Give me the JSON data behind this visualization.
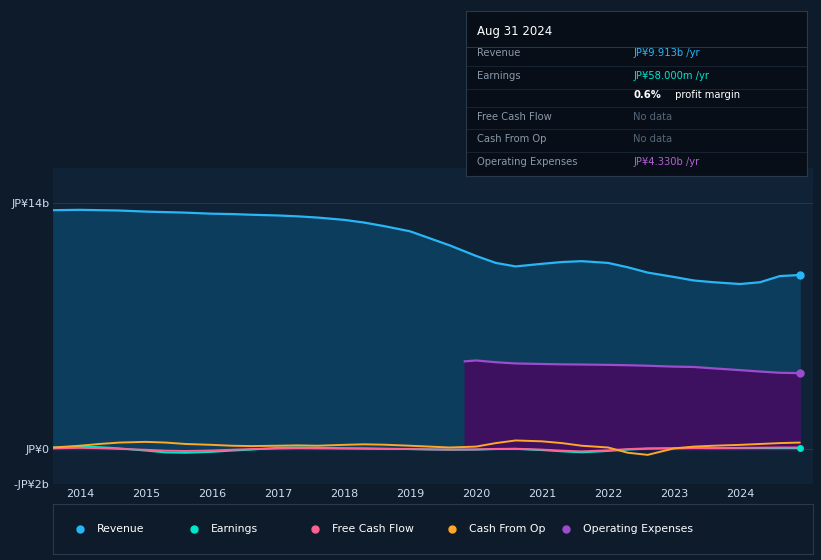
{
  "bg_color": "#0d1b2a",
  "plot_bg_color": "#102236",
  "title_text": "Aug 31 2024",
  "ylim": [
    -2000000000,
    16000000000
  ],
  "xlim_start": 2013.6,
  "xlim_end": 2025.1,
  "xticks": [
    2014,
    2015,
    2016,
    2017,
    2018,
    2019,
    2020,
    2021,
    2022,
    2023,
    2024
  ],
  "ytick_vals": [
    -2000000000,
    0,
    14000000000
  ],
  "ytick_labels": [
    "-JP¥2b",
    "JP¥0",
    "JP¥14b"
  ],
  "revenue": {
    "color": "#29b6f6",
    "fill_color": "#0d3d5c",
    "label": "Revenue",
    "x": [
      2013.6,
      2014.0,
      2014.3,
      2014.6,
      2015.0,
      2015.3,
      2015.6,
      2016.0,
      2016.3,
      2016.6,
      2017.0,
      2017.3,
      2017.6,
      2018.0,
      2018.3,
      2018.6,
      2019.0,
      2019.3,
      2019.6,
      2020.0,
      2020.3,
      2020.6,
      2021.0,
      2021.3,
      2021.6,
      2022.0,
      2022.3,
      2022.6,
      2023.0,
      2023.3,
      2023.6,
      2024.0,
      2024.3,
      2024.6,
      2024.9
    ],
    "y": [
      13600000000,
      13620000000,
      13600000000,
      13580000000,
      13520000000,
      13490000000,
      13460000000,
      13400000000,
      13380000000,
      13340000000,
      13300000000,
      13250000000,
      13180000000,
      13050000000,
      12900000000,
      12700000000,
      12400000000,
      12000000000,
      11600000000,
      11000000000,
      10600000000,
      10400000000,
      10550000000,
      10650000000,
      10700000000,
      10600000000,
      10350000000,
      10050000000,
      9800000000,
      9600000000,
      9500000000,
      9400000000,
      9500000000,
      9850000000,
      9913000000
    ]
  },
  "earnings": {
    "color": "#00e5cc",
    "label": "Earnings",
    "x": [
      2013.6,
      2014.0,
      2014.3,
      2014.6,
      2015.0,
      2015.3,
      2015.6,
      2016.0,
      2016.3,
      2016.6,
      2017.0,
      2017.3,
      2017.6,
      2018.0,
      2018.3,
      2018.6,
      2019.0,
      2019.3,
      2019.6,
      2020.0,
      2020.3,
      2020.6,
      2021.0,
      2021.3,
      2021.6,
      2022.0,
      2022.3,
      2022.6,
      2023.0,
      2023.3,
      2023.6,
      2024.0,
      2024.3,
      2024.6,
      2024.9
    ],
    "y": [
      100000000,
      150000000,
      120000000,
      50000000,
      -80000000,
      -180000000,
      -200000000,
      -150000000,
      -80000000,
      -20000000,
      80000000,
      100000000,
      80000000,
      60000000,
      50000000,
      30000000,
      10000000,
      -10000000,
      -30000000,
      -20000000,
      10000000,
      20000000,
      -50000000,
      -120000000,
      -180000000,
      -100000000,
      -20000000,
      30000000,
      50000000,
      60000000,
      55000000,
      58000000,
      60000000,
      58000000,
      58000000
    ]
  },
  "free_cash_flow": {
    "color": "#ff6090",
    "label": "Free Cash Flow",
    "x": [
      2013.6,
      2014.0,
      2014.3,
      2014.6,
      2015.0,
      2015.3,
      2015.6,
      2016.0,
      2016.3,
      2016.6,
      2017.0,
      2017.3,
      2017.6,
      2018.0,
      2018.3,
      2018.6,
      2019.0,
      2019.3,
      2019.6,
      2020.0,
      2020.3,
      2020.6,
      2021.0,
      2021.3,
      2021.6,
      2022.0,
      2022.3,
      2022.6,
      2023.0,
      2023.3,
      2023.6,
      2024.0,
      2024.3,
      2024.6,
      2024.9
    ],
    "y": [
      50000000,
      80000000,
      60000000,
      20000000,
      -30000000,
      -80000000,
      -100000000,
      -70000000,
      -30000000,
      10000000,
      40000000,
      60000000,
      50000000,
      40000000,
      30000000,
      20000000,
      10000000,
      -10000000,
      -20000000,
      -10000000,
      20000000,
      30000000,
      -20000000,
      -80000000,
      -120000000,
      -60000000,
      10000000,
      50000000,
      60000000,
      70000000,
      65000000,
      80000000,
      90000000,
      100000000,
      100000000
    ]
  },
  "cash_from_op": {
    "color": "#ffa726",
    "label": "Cash From Op",
    "x": [
      2013.6,
      2014.0,
      2014.3,
      2014.6,
      2015.0,
      2015.3,
      2015.6,
      2016.0,
      2016.3,
      2016.6,
      2017.0,
      2017.3,
      2017.6,
      2018.0,
      2018.3,
      2018.6,
      2019.0,
      2019.3,
      2019.6,
      2020.0,
      2020.3,
      2020.6,
      2021.0,
      2021.3,
      2021.6,
      2022.0,
      2022.3,
      2022.6,
      2023.0,
      2023.3,
      2023.6,
      2024.0,
      2024.3,
      2024.6,
      2024.9
    ],
    "y": [
      100000000,
      200000000,
      300000000,
      380000000,
      420000000,
      380000000,
      300000000,
      250000000,
      200000000,
      180000000,
      200000000,
      220000000,
      200000000,
      250000000,
      280000000,
      260000000,
      200000000,
      150000000,
      100000000,
      150000000,
      350000000,
      500000000,
      450000000,
      350000000,
      200000000,
      100000000,
      -200000000,
      -320000000,
      50000000,
      150000000,
      200000000,
      250000000,
      300000000,
      350000000,
      380000000
    ]
  },
  "op_expenses": {
    "color": "#9c4dcc",
    "fill_color": "#3d1060",
    "label": "Operating Expenses",
    "x": [
      2019.83,
      2020.0,
      2020.3,
      2020.6,
      2021.0,
      2021.3,
      2021.6,
      2022.0,
      2022.3,
      2022.6,
      2023.0,
      2023.3,
      2023.6,
      2024.0,
      2024.3,
      2024.6,
      2024.9
    ],
    "y": [
      5000000000,
      5050000000,
      4950000000,
      4880000000,
      4850000000,
      4830000000,
      4820000000,
      4800000000,
      4780000000,
      4750000000,
      4700000000,
      4680000000,
      4600000000,
      4500000000,
      4420000000,
      4350000000,
      4330000000
    ]
  },
  "legend_items": [
    {
      "label": "Revenue",
      "color": "#29b6f6"
    },
    {
      "label": "Earnings",
      "color": "#00e5cc"
    },
    {
      "label": "Free Cash Flow",
      "color": "#ff6090"
    },
    {
      "label": "Cash From Op",
      "color": "#ffa726"
    },
    {
      "label": "Operating Expenses",
      "color": "#9c4dcc"
    }
  ],
  "info_rows": [
    {
      "label": "Revenue",
      "value": "JP¥9.913b /yr",
      "value_color": "#29b6f6",
      "label_color": "#8899aa"
    },
    {
      "label": "Earnings",
      "value": "JP¥58.000m /yr",
      "value_color": "#00e5cc",
      "label_color": "#8899aa"
    },
    {
      "label": "",
      "value": "0.6% profit margin",
      "value_color": "#cccccc",
      "label_color": "#8899aa",
      "bold_prefix": "0.6%",
      "bold_rest": " profit margin"
    },
    {
      "label": "Free Cash Flow",
      "value": "No data",
      "value_color": "#556677",
      "label_color": "#8899aa"
    },
    {
      "label": "Cash From Op",
      "value": "No data",
      "value_color": "#556677",
      "label_color": "#8899aa"
    },
    {
      "label": "Operating Expenses",
      "value": "JP¥4.330b /yr",
      "value_color": "#b060d0",
      "label_color": "#8899aa"
    }
  ]
}
